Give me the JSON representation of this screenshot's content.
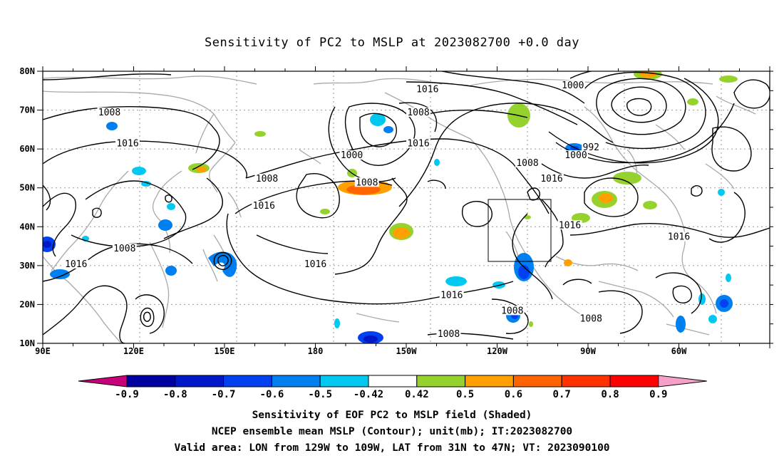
{
  "title": "Sensitivity of PC2 to MSLP at 2023082700 +0.0 day",
  "lat_labels": [
    "80N",
    "70N",
    "60N",
    "50N",
    "40N",
    "30N",
    "20N",
    "10N"
  ],
  "lon_labels": [
    "90E",
    "120E",
    "150E",
    "180",
    "150W",
    "120W",
    "90W",
    "60W"
  ],
  "contour_labels": [
    {
      "text": "1016",
      "lon": -143,
      "lat": 75
    },
    {
      "text": "1008",
      "lon": -146,
      "lat": 69
    },
    {
      "text": "1000",
      "lon": -95,
      "lat": 76
    },
    {
      "text": "992",
      "lon": -89,
      "lat": 60
    },
    {
      "text": "1000",
      "lon": -94,
      "lat": 58
    },
    {
      "text": "1008",
      "lon": -110,
      "lat": 56
    },
    {
      "text": "1016",
      "lon": -102,
      "lat": 52
    },
    {
      "text": "1016",
      "lon": -146,
      "lat": 61
    },
    {
      "text": "1000",
      "lon": -168,
      "lat": 58
    },
    {
      "text": "1008",
      "lon": -163,
      "lat": 51
    },
    {
      "text": "1008",
      "lon": 112,
      "lat": 69
    },
    {
      "text": "1016",
      "lon": 118,
      "lat": 61
    },
    {
      "text": "1008",
      "lon": 164,
      "lat": 52
    },
    {
      "text": "1016",
      "lon": 163,
      "lat": 45
    },
    {
      "text": "1008",
      "lon": 117,
      "lat": 34
    },
    {
      "text": "1016",
      "lon": 101,
      "lat": 30
    },
    {
      "text": "1016",
      "lon": -180,
      "lat": 30
    },
    {
      "text": "1016",
      "lon": -135,
      "lat": 22
    },
    {
      "text": "1008",
      "lon": -115,
      "lat": 18
    },
    {
      "text": "1008",
      "lon": -136,
      "lat": 12
    },
    {
      "text": "1008",
      "lon": -89,
      "lat": 16
    },
    {
      "text": "1016",
      "lon": -96,
      "lat": 40
    },
    {
      "text": "1016",
      "lon": -60,
      "lat": 37
    }
  ],
  "colorbar": {
    "labels": [
      "-0.9",
      "-0.8",
      "-0.7",
      "-0.6",
      "-0.5",
      "-0.42",
      "0.42",
      "0.5",
      "0.6",
      "0.7",
      "0.8",
      "0.9"
    ],
    "colors": [
      "#c8007a",
      "#0000a0",
      "#0018c8",
      "#0040f0",
      "#0080f0",
      "#00c8f0",
      "#ffffff",
      "#96d22d",
      "#ffa000",
      "#ff6400",
      "#ff3200",
      "#ff0000",
      "#f4a0c8"
    ]
  },
  "caption_lines": [
    "Sensitivity of EOF PC2 to MSLP field (Shaded)",
    "NCEP ensemble mean MSLP (Contour); unit(mb); IT:2023082700",
    "Valid area: LON from 129W to 109W, LAT from 31N to 47N; VT: 2023090100"
  ]
}
